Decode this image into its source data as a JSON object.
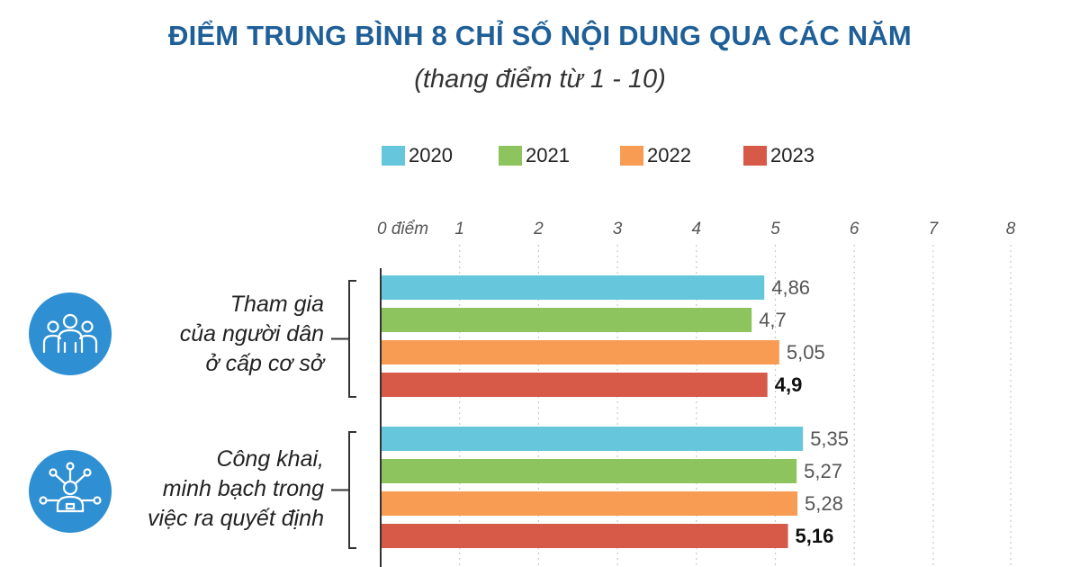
{
  "title": "ĐIỂM TRUNG BÌNH 8 CHỈ SỐ NỘI DUNG QUA CÁC NĂM",
  "subtitle": "(thang điểm từ 1 - 10)",
  "icons": [
    "people-group-icon",
    "person-network-icon"
  ],
  "chart_data": {
    "type": "bar",
    "orientation": "horizontal",
    "title": "ĐIỂM TRUNG BÌNH 8 CHỈ SỐ NỘI DUNG QUA CÁC NĂM",
    "subtitle": "(thang điểm từ 1 - 10)",
    "x_ticks": [
      {
        "value": 0,
        "label": "0 điểm"
      },
      {
        "value": 1,
        "label": "1"
      },
      {
        "value": 2,
        "label": "2"
      },
      {
        "value": 3,
        "label": "3"
      },
      {
        "value": 4,
        "label": "4"
      },
      {
        "value": 5,
        "label": "5"
      },
      {
        "value": 6,
        "label": "6"
      },
      {
        "value": 7,
        "label": "7"
      },
      {
        "value": 8,
        "label": "8"
      }
    ],
    "xlim": [
      0,
      8
    ],
    "grid": true,
    "legend_placement": "top",
    "categories": [
      "Tham gia\ncủa người dân\nở cấp cơ sở",
      "Công khai,\nminh bạch trong\nviệc ra quyết định"
    ],
    "series": [
      {
        "name": "2020",
        "color": "#66c7dc",
        "values": [
          4.86,
          5.35
        ],
        "labels": [
          "4,86",
          "5,35"
        ],
        "bold": false
      },
      {
        "name": "2021",
        "color": "#8ec45d",
        "values": [
          4.7,
          5.27
        ],
        "labels": [
          "4,7",
          "5,27"
        ],
        "bold": false
      },
      {
        "name": "2022",
        "color": "#f79c52",
        "values": [
          5.05,
          5.28
        ],
        "labels": [
          "5,05",
          "5,28"
        ],
        "bold": false
      },
      {
        "name": "2023",
        "color": "#d75a48",
        "values": [
          4.9,
          5.16
        ],
        "labels": [
          "4,9",
          "5,16"
        ],
        "bold": true
      }
    ]
  }
}
